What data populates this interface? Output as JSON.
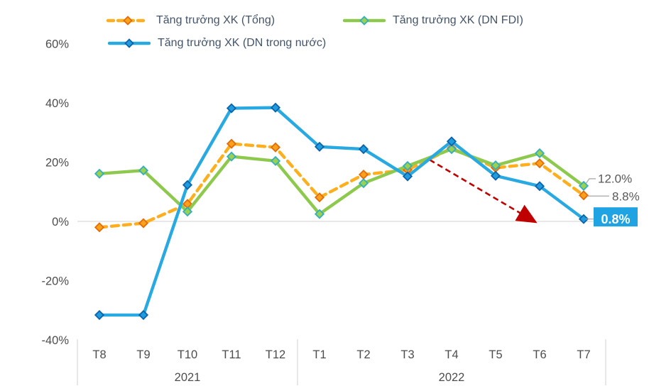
{
  "chart_data": {
    "type": "line",
    "title": "",
    "xlabel": "",
    "ylabel": "",
    "ylim": [
      -40,
      60
    ],
    "grid": "zero-line-only",
    "legend_position": "top",
    "categories": [
      "T8",
      "T9",
      "T10",
      "T11",
      "T12",
      "T1",
      "T2",
      "T3",
      "T4",
      "T5",
      "T6",
      "T7"
    ],
    "year_groups": [
      {
        "label": "2021",
        "span": [
          0,
          4
        ]
      },
      {
        "label": "2022",
        "span": [
          5,
          11
        ]
      }
    ],
    "yticks": [
      {
        "value": 60,
        "label": "60%"
      },
      {
        "value": 40,
        "label": "40%"
      },
      {
        "value": 20,
        "label": "20%"
      },
      {
        "value": 0,
        "label": "0%"
      },
      {
        "value": -20,
        "label": "-20%"
      },
      {
        "value": -40,
        "label": "-40%"
      }
    ],
    "series": [
      {
        "name": "Tăng trưởng XK (Tổng)",
        "dash": true,
        "color": "#FFAF1E",
        "marker_fill": "#F9A11B",
        "marker_stroke": "#E36C09",
        "values": [
          -2.0,
          -0.6,
          5.9,
          26.2,
          25.0,
          8.1,
          15.8,
          17.4,
          24.7,
          18.1,
          19.6,
          8.8
        ]
      },
      {
        "name": "Tăng trưởng XK (DN FDI)",
        "dash": false,
        "color": "#8DC94D",
        "marker_fill": "#9AD14F",
        "marker_stroke": "#31AEC0",
        "values": [
          16.1,
          17.2,
          3.3,
          21.9,
          20.4,
          2.5,
          12.9,
          18.7,
          24.4,
          18.9,
          23.0,
          12.0
        ]
      },
      {
        "name": "Tăng trưởng XK (DN trong nước)",
        "dash": false,
        "color": "#29A9E1",
        "marker_fill": "#1F9CDE",
        "marker_stroke": "#0E62A8",
        "values": [
          -31.6,
          -31.6,
          12.3,
          38.2,
          38.4,
          25.2,
          24.4,
          15.2,
          27.0,
          15.4,
          11.9,
          0.8
        ]
      }
    ],
    "annotations": {
      "end_labels": [
        {
          "series_index": 1,
          "text": "12.0%",
          "style": "elbow"
        },
        {
          "series_index": 0,
          "text": "8.8%",
          "style": "line"
        },
        {
          "series_index": 2,
          "text": "0.8%",
          "style": "highlight-box",
          "box_color": "#1FA3E3",
          "text_color": "#FFFFFF"
        }
      ],
      "trend_arrow": {
        "color": "#C00000",
        "style": "dashed",
        "from": {
          "index": 8,
          "value": 20.8
        },
        "to": {
          "index": 10.25,
          "value": 1.2
        }
      }
    }
  },
  "colors": {
    "background": "#FFFFFF",
    "gridline": "#D9D9D9",
    "axis_text": "#4D4D4D",
    "legend_text": "#44546A",
    "annotation_text": "#595959",
    "connector": "#A6A6A6"
  }
}
